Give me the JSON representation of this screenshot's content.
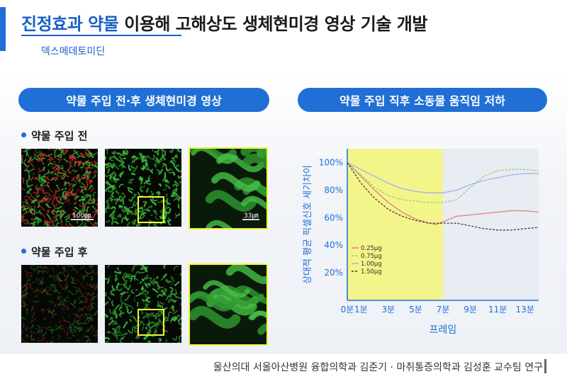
{
  "header": {
    "title_highlight": "진정효과 약물",
    "title_rest": " 이용해 고해상도 생체현미경 영상 기술 개발",
    "subtitle": "덱스메데토미딘"
  },
  "left_panel": {
    "pill": "약물 주입 전·후 생체현미경 영상",
    "before_label": "약물 주입 전",
    "after_label": "약물 주입 후",
    "scale_100": "100㎛",
    "scale_33": "33㎛"
  },
  "right_panel": {
    "pill": "약물 주입 직후 소동물 움직임 저하"
  },
  "footer": {
    "credit": "울산의대 서울아산병원 융합의학과 김준기 · 마취통증의학과 김성훈 교수팀 연구"
  },
  "colors": {
    "accent": "#1f6fd6",
    "highlight_band": "#f3f58a",
    "frame_yellow": "#f3f33a"
  },
  "chart_data": {
    "type": "line",
    "xlabel": "프레임",
    "ylabel": "상대적 평균 픽셀신호 세기차이",
    "x_ticks": [
      "0분",
      "1분",
      "3분",
      "5분",
      "7분",
      "9분",
      "11분",
      "13분"
    ],
    "y_ticks": [
      "20%",
      "40%",
      "60%",
      "80%",
      "100%"
    ],
    "ylim": [
      0,
      110
    ],
    "xlim": [
      0,
      14
    ],
    "highlight_range": [
      0,
      7
    ],
    "legend_position": "bottom-left",
    "series": [
      {
        "name": "0.25μg",
        "color": "#e87b80",
        "dash": "",
        "x": [
          0,
          1,
          2,
          3,
          4,
          5,
          6,
          6.5,
          7,
          8,
          9,
          10,
          11,
          12,
          13,
          14
        ],
        "y": [
          100,
          90,
          80,
          71,
          64,
          59,
          56,
          55,
          57,
          61,
          62,
          63,
          64,
          65,
          65,
          64
        ]
      },
      {
        "name": "0.75μg",
        "color": "#8fd16e",
        "dash": "3,2",
        "x": [
          0,
          1,
          2,
          3,
          4,
          5,
          6,
          7,
          8,
          9,
          10,
          11,
          12,
          13,
          14
        ],
        "y": [
          100,
          91,
          82,
          76,
          73,
          72,
          71,
          71,
          73,
          82,
          90,
          94,
          95,
          95,
          94
        ]
      },
      {
        "name": "1.00μg",
        "color": "#9fb3e8",
        "dash": "",
        "x": [
          0,
          1,
          2,
          3,
          4,
          5,
          6,
          7,
          8,
          9,
          10,
          11,
          12,
          13,
          14
        ],
        "y": [
          100,
          95,
          90,
          85,
          81,
          79,
          78,
          78,
          80,
          84,
          87,
          89,
          91,
          92,
          92
        ]
      },
      {
        "name": "1.50μg",
        "color": "#3a3a3a",
        "dash": "3,2",
        "x": [
          0,
          1,
          2,
          3,
          4,
          5,
          6,
          7,
          8,
          9,
          10,
          11,
          12,
          13,
          14
        ],
        "y": [
          100,
          85,
          74,
          66,
          61,
          58,
          56,
          56,
          56,
          54,
          52,
          51,
          51,
          52,
          53
        ]
      }
    ]
  }
}
